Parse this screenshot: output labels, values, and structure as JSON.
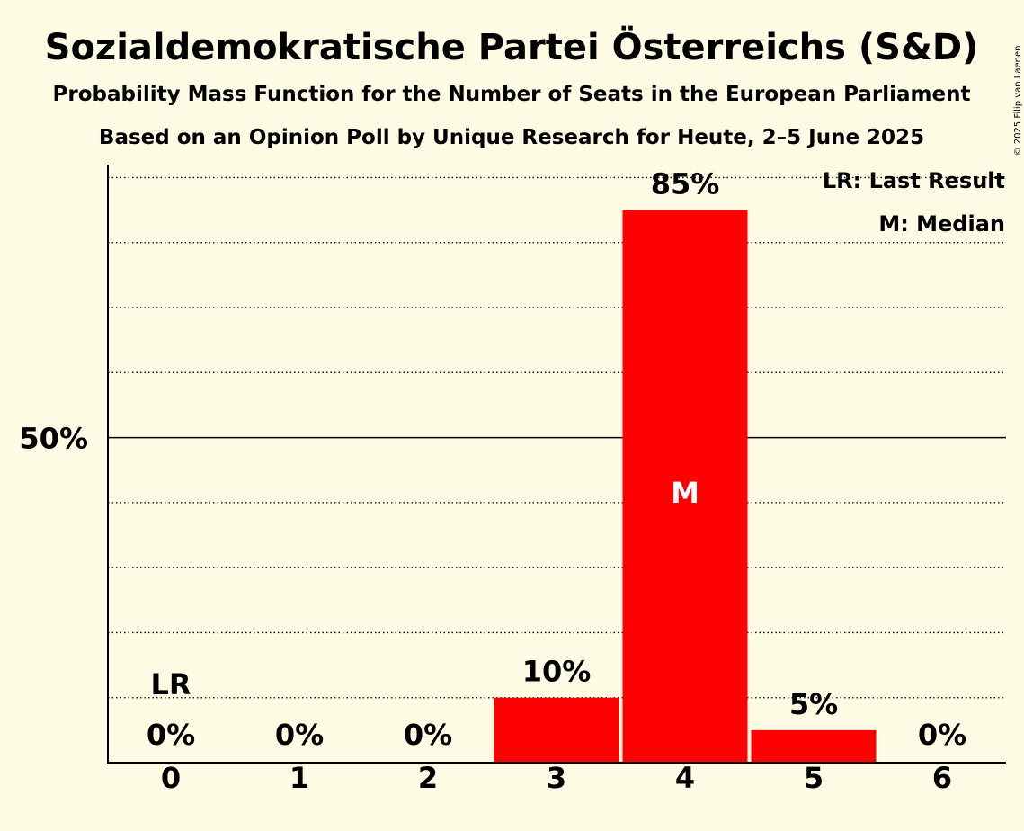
{
  "title": "Sozialdemokratische Partei Österreichs (S&D)",
  "subtitle": "Probability Mass Function for the Number of Seats in the European Parliament",
  "subtitle2": "Based on an Opinion Poll by Unique Research for Heute, 2–5 June 2025",
  "copyright": "© 2025 Filip van Laenen",
  "legend": {
    "lr": "LR: Last Result",
    "m": "M: Median"
  },
  "colors": {
    "bar": "#ff0000",
    "background": "#fdfbe4"
  },
  "chart_data": {
    "type": "bar",
    "categories": [
      "0",
      "1",
      "2",
      "3",
      "4",
      "5",
      "6"
    ],
    "values": [
      0,
      0,
      0,
      10,
      85,
      5,
      0
    ],
    "value_labels": [
      "0%",
      "0%",
      "0%",
      "10%",
      "85%",
      "5%",
      "0%"
    ],
    "ylim": [
      0,
      92
    ],
    "ytick_label": "50%",
    "ytick_value": 50,
    "grid": "dotted every 10%",
    "last_result": {
      "category": "0",
      "label": "LR"
    },
    "median": {
      "category": "4",
      "label": "M"
    },
    "legend_position": "top-right"
  }
}
